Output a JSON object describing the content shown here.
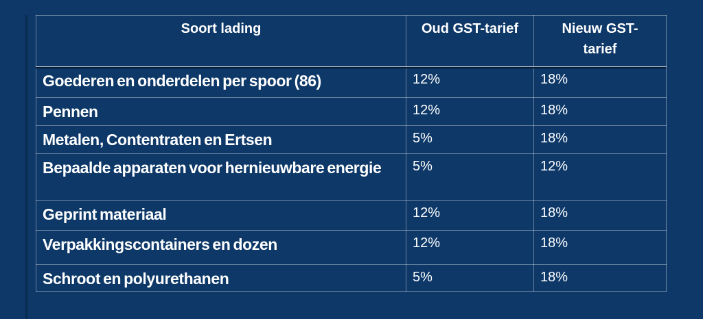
{
  "page": {
    "description": "GST rate change table (Dutch)",
    "colors": {
      "background": "#0d3868",
      "accent_line": "#0a2c50",
      "cell_border": "rgba(255,255,255,0.38)",
      "header_underline_bright": "rgba(255,255,255,0.85)",
      "header_underline_dark": "#0a1b33",
      "text": "#ffffff"
    }
  },
  "table": {
    "columns": [
      "Soort lading",
      "Oud GST-tarief",
      "Nieuw GST-tarief"
    ],
    "rows": [
      {
        "soort": "Goederen en onderdelen per spoor (86)",
        "oud": "12%",
        "nieuw": "18%"
      },
      {
        "soort": "Pennen",
        "oud": "12%",
        "nieuw": "18%"
      },
      {
        "soort": "Metalen, Contentraten en Ertsen",
        "oud": "5%",
        "nieuw": "18%"
      },
      {
        "soort": "Bepaalde apparaten voor hernieuwbare energie",
        "oud": "5%",
        "nieuw": "12%"
      },
      {
        "soort": "Geprint materiaal",
        "oud": "12%",
        "nieuw": "18%"
      },
      {
        "soort": "Verpakkingscontainers en dozen",
        "oud": "12%",
        "nieuw": "18%"
      },
      {
        "soort": "Schroot en polyurethanen",
        "oud": "5%",
        "nieuw": "18%"
      }
    ]
  }
}
